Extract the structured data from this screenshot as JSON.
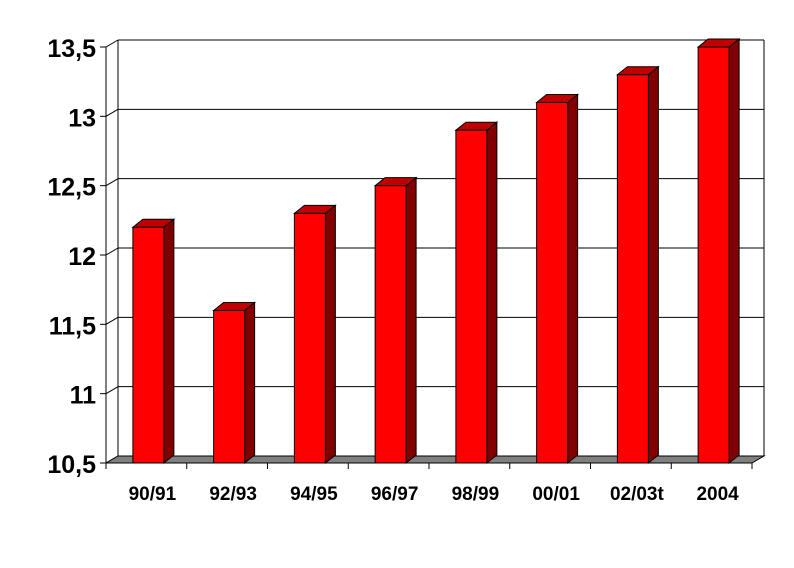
{
  "chart_data": {
    "type": "bar",
    "title": "",
    "xlabel": "",
    "ylabel": "",
    "categories": [
      "90/91",
      "92/93",
      "94/95",
      "96/97",
      "98/99",
      "00/01",
      "02/03t",
      "2004"
    ],
    "values": [
      12.2,
      11.6,
      12.3,
      12.5,
      12.9,
      13.1,
      13.3,
      13.5
    ],
    "ylim": [
      10.5,
      13.5
    ],
    "yticks": [
      10.5,
      11,
      11.5,
      12,
      12.5,
      13,
      13.5
    ],
    "ytick_labels": [
      "10,5",
      "11",
      "11,5",
      "12",
      "12,5",
      "13",
      "13,5"
    ],
    "grid": true,
    "legend": "none",
    "colors": {
      "bar_front": "#ff0000",
      "bar_side": "#800000",
      "bar_top": "#c00000",
      "floor": "#808080",
      "grid": "#000000"
    }
  }
}
